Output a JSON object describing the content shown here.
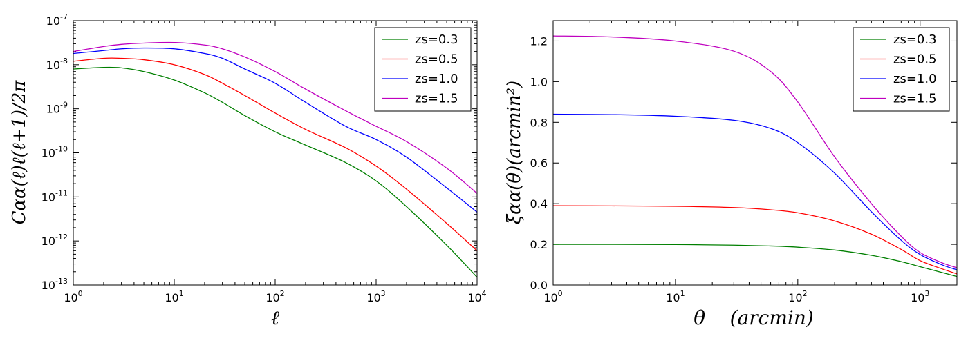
{
  "chart_data": [
    {
      "type": "line",
      "scale": {
        "x": "log",
        "y": "log"
      },
      "xlabel": "ℓ",
      "ylabel": "Cαα(ℓ)ℓ(ℓ+1)/2π",
      "xlim": [
        1,
        10000
      ],
      "ylim": [
        1e-13,
        1e-07
      ],
      "x_ticks": [
        {
          "base": "10",
          "exp": "0"
        },
        {
          "base": "10",
          "exp": "1"
        },
        {
          "base": "10",
          "exp": "2"
        },
        {
          "base": "10",
          "exp": "3"
        },
        {
          "base": "10",
          "exp": "4"
        }
      ],
      "y_ticks": [
        {
          "base": "10",
          "exp": "-13"
        },
        {
          "base": "10",
          "exp": "-12"
        },
        {
          "base": "10",
          "exp": "-11"
        },
        {
          "base": "10",
          "exp": "-10"
        },
        {
          "base": "10",
          "exp": "-9"
        },
        {
          "base": "10",
          "exp": "-8"
        },
        {
          "base": "10",
          "exp": "-7"
        }
      ],
      "legend_position": "top-right",
      "series": [
        {
          "name": "zs=0.3",
          "color": "#007f00",
          "x": [
            1,
            2,
            3,
            5,
            10,
            20,
            30,
            50,
            100,
            200,
            500,
            1000,
            2000,
            5000,
            10000
          ],
          "y": [
            8e-09,
            8.7e-09,
            8.5e-09,
            7e-09,
            4.5e-09,
            2.3e-09,
            1.4e-09,
            7e-10,
            3e-10,
            1.5e-10,
            6e-11,
            2.3e-11,
            6e-12,
            8e-13,
            1.5e-13
          ]
        },
        {
          "name": "zs=0.5",
          "color": "#ff0000",
          "x": [
            1,
            2,
            3,
            5,
            10,
            20,
            30,
            50,
            100,
            200,
            500,
            1000,
            2000,
            5000,
            10000
          ],
          "y": [
            1.2e-08,
            1.4e-08,
            1.4e-08,
            1.3e-08,
            1e-08,
            6e-09,
            3.8e-09,
            2e-09,
            8e-10,
            3.4e-10,
            1.3e-10,
            5e-11,
            1.5e-11,
            2.5e-12,
            6e-13
          ]
        },
        {
          "name": "zs=1.0",
          "color": "#0000ff",
          "x": [
            1,
            2,
            3,
            5,
            10,
            20,
            30,
            50,
            100,
            200,
            500,
            1000,
            2000,
            5000,
            10000
          ],
          "y": [
            1.8e-08,
            2.1e-08,
            2.3e-08,
            2.4e-08,
            2.3e-08,
            1.8e-08,
            1.4e-08,
            8e-09,
            3.8e-09,
            1.4e-09,
            4e-10,
            2e-10,
            8e-11,
            1.6e-11,
            4.5e-12
          ]
        },
        {
          "name": "zs=1.5",
          "color": "#bf00bf",
          "x": [
            1,
            2,
            3,
            5,
            10,
            20,
            30,
            50,
            100,
            200,
            500,
            1000,
            2000,
            5000,
            10000
          ],
          "y": [
            2e-08,
            2.6e-08,
            2.9e-08,
            3.1e-08,
            3.2e-08,
            2.8e-08,
            2.3e-08,
            1.5e-08,
            7e-09,
            2.8e-09,
            9e-10,
            4e-10,
            1.8e-10,
            4.5e-11,
            1.2e-11
          ]
        }
      ]
    },
    {
      "type": "line",
      "scale": {
        "x": "log",
        "y": "linear"
      },
      "xlabel": "θ    (arcmin)",
      "ylabel": "ξαα(θ)(arcmin²)",
      "xlim": [
        1,
        2000
      ],
      "ylim": [
        0.0,
        1.3
      ],
      "x_ticks": [
        {
          "base": "10",
          "exp": "0"
        },
        {
          "base": "10",
          "exp": "1"
        },
        {
          "base": "10",
          "exp": "2"
        },
        {
          "base": "10",
          "exp": "3"
        }
      ],
      "y_ticks": [
        "0.0",
        "0.2",
        "0.4",
        "0.6",
        "0.8",
        "1.0",
        "1.2"
      ],
      "legend_position": "top-right",
      "series": [
        {
          "name": "zs=0.3",
          "color": "#007f00",
          "x": [
            1,
            3,
            10,
            30,
            60,
            100,
            200,
            400,
            700,
            1000,
            1500,
            2000
          ],
          "y": [
            0.2,
            0.2,
            0.199,
            0.196,
            0.192,
            0.186,
            0.172,
            0.146,
            0.115,
            0.09,
            0.062,
            0.042
          ]
        },
        {
          "name": "zs=0.5",
          "color": "#ff0000",
          "x": [
            1,
            3,
            10,
            30,
            60,
            100,
            200,
            400,
            700,
            1000,
            1500,
            2000
          ],
          "y": [
            0.39,
            0.389,
            0.387,
            0.381,
            0.37,
            0.355,
            0.315,
            0.25,
            0.175,
            0.12,
            0.08,
            0.055
          ]
        },
        {
          "name": "zs=1.0",
          "color": "#0000ff",
          "x": [
            1,
            3,
            10,
            30,
            60,
            100,
            200,
            400,
            700,
            1000,
            1500,
            2000
          ],
          "y": [
            0.84,
            0.838,
            0.83,
            0.81,
            0.77,
            0.7,
            0.55,
            0.36,
            0.22,
            0.15,
            0.1,
            0.075
          ]
        },
        {
          "name": "zs=1.5",
          "color": "#bf00bf",
          "x": [
            1,
            3,
            10,
            30,
            60,
            100,
            200,
            400,
            700,
            1000,
            1500,
            2000
          ],
          "y": [
            1.225,
            1.22,
            1.2,
            1.15,
            1.05,
            0.9,
            0.63,
            0.4,
            0.24,
            0.16,
            0.11,
            0.085
          ]
        }
      ]
    }
  ]
}
